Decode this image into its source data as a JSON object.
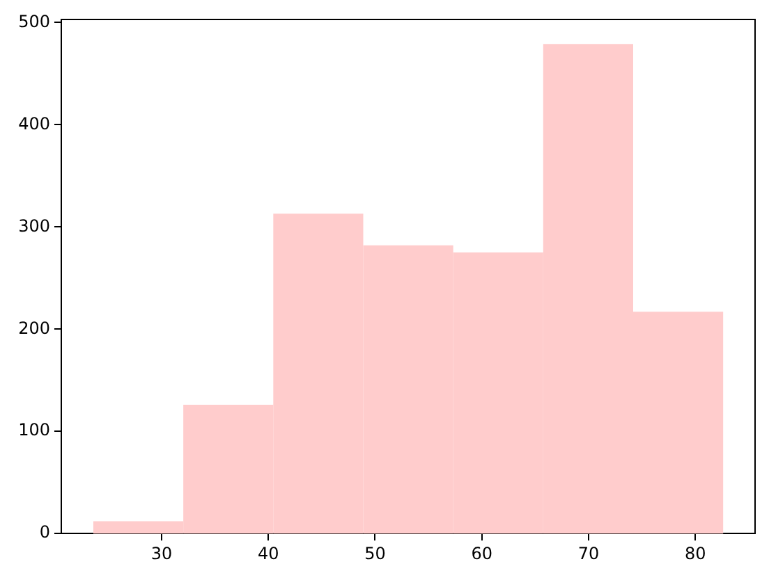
{
  "chart_data": {
    "type": "histogram",
    "bins": [
      23.6,
      32.03,
      40.46,
      48.89,
      57.32,
      65.75,
      74.18,
      82.61
    ],
    "values": [
      12,
      126,
      313,
      282,
      275,
      479,
      217
    ],
    "color": "#ffcccc",
    "xlim": [
      20.6,
      85.6
    ],
    "xticks": [
      30,
      40,
      50,
      60,
      70,
      80
    ],
    "ylim": [
      0,
      503
    ],
    "yticks": [
      0,
      100,
      200,
      300,
      400,
      500
    ],
    "grid": false,
    "legend": false
  }
}
